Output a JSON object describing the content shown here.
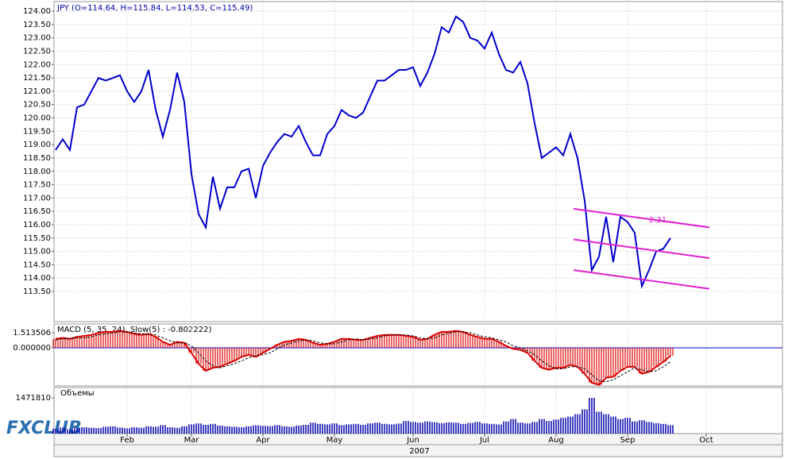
{
  "chart_data": [
    {
      "type": "line",
      "title": "JPY (O=114.64, H=115.84, L=114.53, C=115.49)",
      "x_label": "2007",
      "categories": [
        null,
        null,
        null,
        null,
        null,
        null,
        null,
        null,
        null,
        null,
        "Feb",
        null,
        null,
        null,
        null,
        null,
        null,
        null,
        null,
        "Mar",
        null,
        null,
        null,
        null,
        null,
        null,
        null,
        null,
        null,
        "Apr",
        null,
        null,
        null,
        null,
        null,
        null,
        null,
        null,
        null,
        "May",
        null,
        null,
        null,
        null,
        null,
        null,
        null,
        null,
        null,
        null,
        "Jun",
        null,
        null,
        null,
        null,
        null,
        null,
        null,
        null,
        null,
        "Jul",
        null,
        null,
        null,
        null,
        null,
        null,
        null,
        null,
        null,
        "Aug",
        null,
        null,
        null,
        null,
        null,
        null,
        null,
        null,
        null,
        "Sep",
        null,
        null,
        null,
        null,
        null,
        null,
        null,
        null,
        null,
        null,
        "Oct"
      ],
      "series": [
        {
          "name": "JPY",
          "color": "#0000cc",
          "values": [
            118.8,
            119.2,
            118.8,
            120.4,
            120.5,
            121.0,
            121.5,
            121.4,
            121.5,
            121.6,
            121.0,
            120.6,
            121.0,
            121.8,
            120.3,
            119.3,
            120.3,
            121.7,
            120.6,
            117.9,
            116.4,
            115.9,
            117.8,
            116.6,
            117.4,
            117.4,
            118.0,
            118.1,
            117.0,
            118.2,
            118.7,
            119.1,
            119.4,
            119.3,
            119.7,
            119.1,
            118.6,
            118.6,
            119.4,
            119.7,
            120.3,
            120.1,
            120.0,
            120.2,
            120.8,
            121.4,
            121.4,
            121.6,
            121.8,
            121.8,
            121.9,
            121.2,
            121.7,
            122.4,
            123.4,
            123.2,
            123.8,
            123.6,
            123.0,
            122.9,
            122.6,
            123.2,
            122.4,
            121.8,
            121.7,
            122.1,
            121.3,
            119.8,
            118.5,
            118.7,
            118.9,
            118.6,
            119.4,
            118.5,
            116.9,
            114.3,
            114.8,
            116.3,
            114.6,
            116.3,
            116.1,
            115.7,
            113.7,
            114.3,
            115.0,
            115.1,
            115.5,
            null,
            null,
            null,
            null,
            null
          ]
        }
      ],
      "ylim": [
        112.37,
        124.36
      ],
      "yticks": [
        {
          "value": 113.5,
          "label": "113.50"
        },
        {
          "value": 114,
          "label": "114.00"
        },
        {
          "value": 114.5,
          "label": "114.50"
        },
        {
          "value": 115,
          "label": "115.00"
        },
        {
          "value": 115.5,
          "label": "115.50"
        },
        {
          "value": 116,
          "label": "116.00"
        },
        {
          "value": 116.5,
          "label": "116.50"
        },
        {
          "value": 117,
          "label": "117.00"
        },
        {
          "value": 117.5,
          "label": "117.50"
        },
        {
          "value": 118,
          "label": "118.00"
        },
        {
          "value": 118.5,
          "label": "118.50"
        },
        {
          "value": 119,
          "label": "119.00"
        },
        {
          "value": 119.5,
          "label": "119.50"
        },
        {
          "value": 120,
          "label": "120.00"
        },
        {
          "value": 120.5,
          "label": "120.50"
        },
        {
          "value": 121,
          "label": "121.00"
        },
        {
          "value": 121.5,
          "label": "121.50"
        },
        {
          "value": 122,
          "label": "122.00"
        },
        {
          "value": 122.5,
          "label": "122.50"
        },
        {
          "value": 123,
          "label": "123.00"
        },
        {
          "value": 123.5,
          "label": "123.50"
        },
        {
          "value": 124,
          "label": "124.00"
        }
      ],
      "grid": true,
      "trend_lines": [
        {
          "values": [
            116.6,
            115.9
          ]
        },
        {
          "values": [
            115.45,
            114.75
          ]
        },
        {
          "values": [
            114.3,
            113.6
          ]
        }
      ],
      "trend_label": "2.31",
      "trend_color": "#e020d0"
    },
    {
      "type": "macd",
      "title": "MACD (5, 35, 24), Slow(5) : -0.802222)",
      "series": [
        {
          "name": "MACD",
          "color": "#dd0000",
          "values": [
            0.9,
            1.0,
            0.9,
            1.1,
            1.2,
            1.3,
            1.5,
            1.6,
            1.6,
            1.7,
            1.6,
            1.4,
            1.3,
            1.4,
            1.1,
            0.6,
            0.3,
            0.6,
            0.5,
            -0.5,
            -1.6,
            -2.3,
            -2.0,
            -1.9,
            -1.6,
            -1.3,
            -0.9,
            -0.7,
            -0.9,
            -0.5,
            -0.1,
            0.3,
            0.6,
            0.7,
            0.9,
            0.8,
            0.5,
            0.3,
            0.4,
            0.6,
            0.9,
            0.9,
            0.8,
            0.8,
            1.0,
            1.2,
            1.3,
            1.3,
            1.3,
            1.2,
            1.1,
            0.8,
            0.9,
            1.3,
            1.6,
            1.6,
            1.7,
            1.6,
            1.3,
            1.1,
            0.9,
            0.9,
            0.6,
            0.2,
            -0.1,
            -0.2,
            -0.5,
            -1.3,
            -2.0,
            -2.2,
            -2.0,
            -2.0,
            -1.7,
            -1.9,
            -2.6,
            -3.5,
            -3.7,
            -3.0,
            -2.9,
            -2.3,
            -1.9,
            -1.9,
            -2.6,
            -2.4,
            -1.9,
            -1.4,
            -0.8,
            null,
            null,
            null,
            null,
            null
          ]
        },
        {
          "name": "Slow",
          "color": "#000000",
          "values": [
            0.8,
            0.9,
            0.9,
            1.0,
            1.0,
            1.1,
            1.3,
            1.4,
            1.5,
            1.6,
            1.6,
            1.5,
            1.4,
            1.4,
            1.3,
            1.0,
            0.7,
            0.5,
            0.5,
            0.2,
            -0.5,
            -1.3,
            -1.8,
            -2.0,
            -1.8,
            -1.6,
            -1.3,
            -1.0,
            -0.8,
            -0.7,
            -0.5,
            -0.1,
            0.3,
            0.5,
            0.7,
            0.8,
            0.7,
            0.5,
            0.4,
            0.4,
            0.6,
            0.8,
            0.9,
            0.8,
            0.9,
            1.0,
            1.2,
            1.3,
            1.3,
            1.3,
            1.2,
            1.0,
            0.9,
            1.0,
            1.3,
            1.5,
            1.6,
            1.6,
            1.5,
            1.3,
            1.1,
            1.0,
            0.8,
            0.6,
            0.2,
            0.0,
            -0.3,
            -0.7,
            -1.3,
            -1.8,
            -2.1,
            -2.1,
            -1.9,
            -1.9,
            -2.1,
            -2.7,
            -3.3,
            -3.4,
            -3.2,
            -2.8,
            -2.4,
            -2.0,
            -2.2,
            -2.4,
            -2.3,
            -1.9,
            -1.4,
            null,
            null,
            null,
            null,
            null
          ]
        }
      ],
      "ylim": [
        -3.82,
        2.39
      ],
      "yticks": [
        {
          "value": 0,
          "label": "0.000000"
        },
        1.513506
      ],
      "zero_color": "#0000cc"
    },
    {
      "type": "bar",
      "title": "Объемы",
      "color": "#0000aa",
      "values": [
        200000,
        250000,
        180000,
        220000,
        260000,
        240000,
        230000,
        280000,
        300000,
        250000,
        220000,
        260000,
        240000,
        300000,
        280000,
        350000,
        260000,
        240000,
        300000,
        380000,
        420000,
        360000,
        400000,
        330000,
        300000,
        280000,
        260000,
        300000,
        340000,
        320000,
        310000,
        350000,
        300000,
        280000,
        330000,
        360000,
        450000,
        400000,
        380000,
        420000,
        350000,
        380000,
        400000,
        360000,
        420000,
        450000,
        400000,
        380000,
        410000,
        520000,
        480000,
        450000,
        500000,
        470000,
        430000,
        460000,
        450000,
        400000,
        440000,
        480000,
        420000,
        400000,
        380000,
        500000,
        600000,
        450000,
        420000,
        480000,
        600000,
        520000,
        580000,
        650000,
        700000,
        800000,
        1000000,
        1471810,
        900000,
        800000,
        700000,
        600000,
        650000,
        500000,
        550000,
        480000,
        430000,
        400000,
        350000,
        null,
        null,
        null,
        null,
        null
      ],
      "ylim": [
        0,
        1897000
      ],
      "yticks": [
        1471810
      ]
    }
  ],
  "logo": "FXCLUB"
}
